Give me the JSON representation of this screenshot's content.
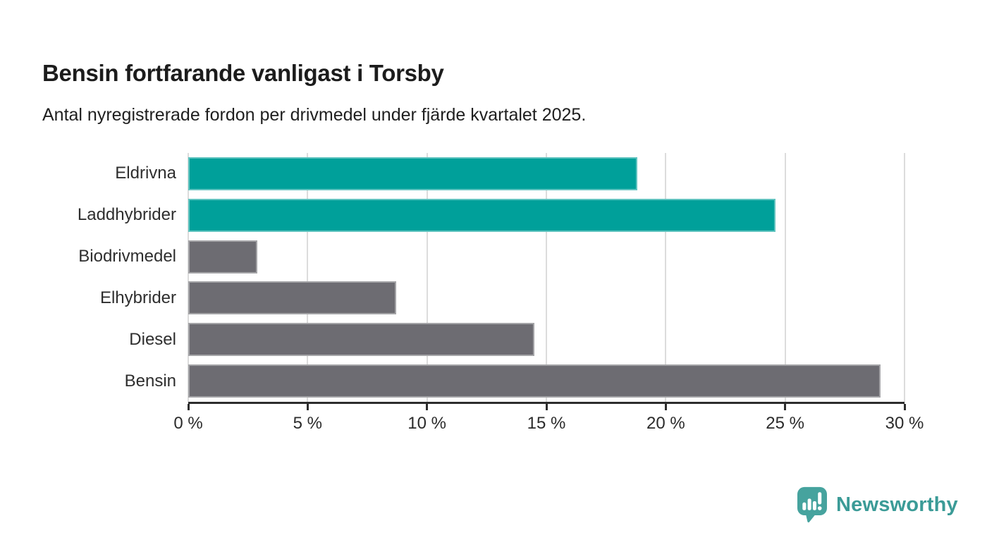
{
  "header": {
    "title": "Bensin fortfarande vanligast i Torsby",
    "subtitle": "Antal nyregistrerade fordon per drivmedel under fjärde kvartalet 2025."
  },
  "chart_data": {
    "type": "bar",
    "orientation": "horizontal",
    "title": "Bensin fortfarande vanligast i Torsby",
    "subtitle": "Antal nyregistrerade fordon per drivmedel under fjärde kvartalet 2025.",
    "categories": [
      "Eldrivna",
      "Laddhybrider",
      "Biodrivmedel",
      "Elhybrider",
      "Diesel",
      "Bensin"
    ],
    "values": [
      18.8,
      24.6,
      2.9,
      8.7,
      14.5,
      29
    ],
    "unit": "%",
    "bar_colors": [
      "#00A09A",
      "#00A09A",
      "#6D6C72",
      "#6D6C72",
      "#6D6C72",
      "#6D6C72"
    ],
    "xlim": [
      0,
      30
    ],
    "x_ticks": [
      0,
      5,
      10,
      15,
      20,
      25,
      30
    ],
    "x_tick_labels": [
      "0 %",
      "5 %",
      "10 %",
      "15 %",
      "20 %",
      "25 %",
      "30 %"
    ],
    "grid": true,
    "legend": "none"
  },
  "colors": {
    "accent_teal": "#00A09A",
    "neutral_gray": "#6D6C72",
    "gridline": "#DCDCDC",
    "axis": "#2D2D2D",
    "text_dark": "#1C1C1C",
    "logo_teal": "#46A39E",
    "brand_text_teal": "#3B9B97"
  },
  "footer": {
    "brand": "Newsworthy",
    "logo_icon": "speech-bubble-bar-chart-icon"
  }
}
